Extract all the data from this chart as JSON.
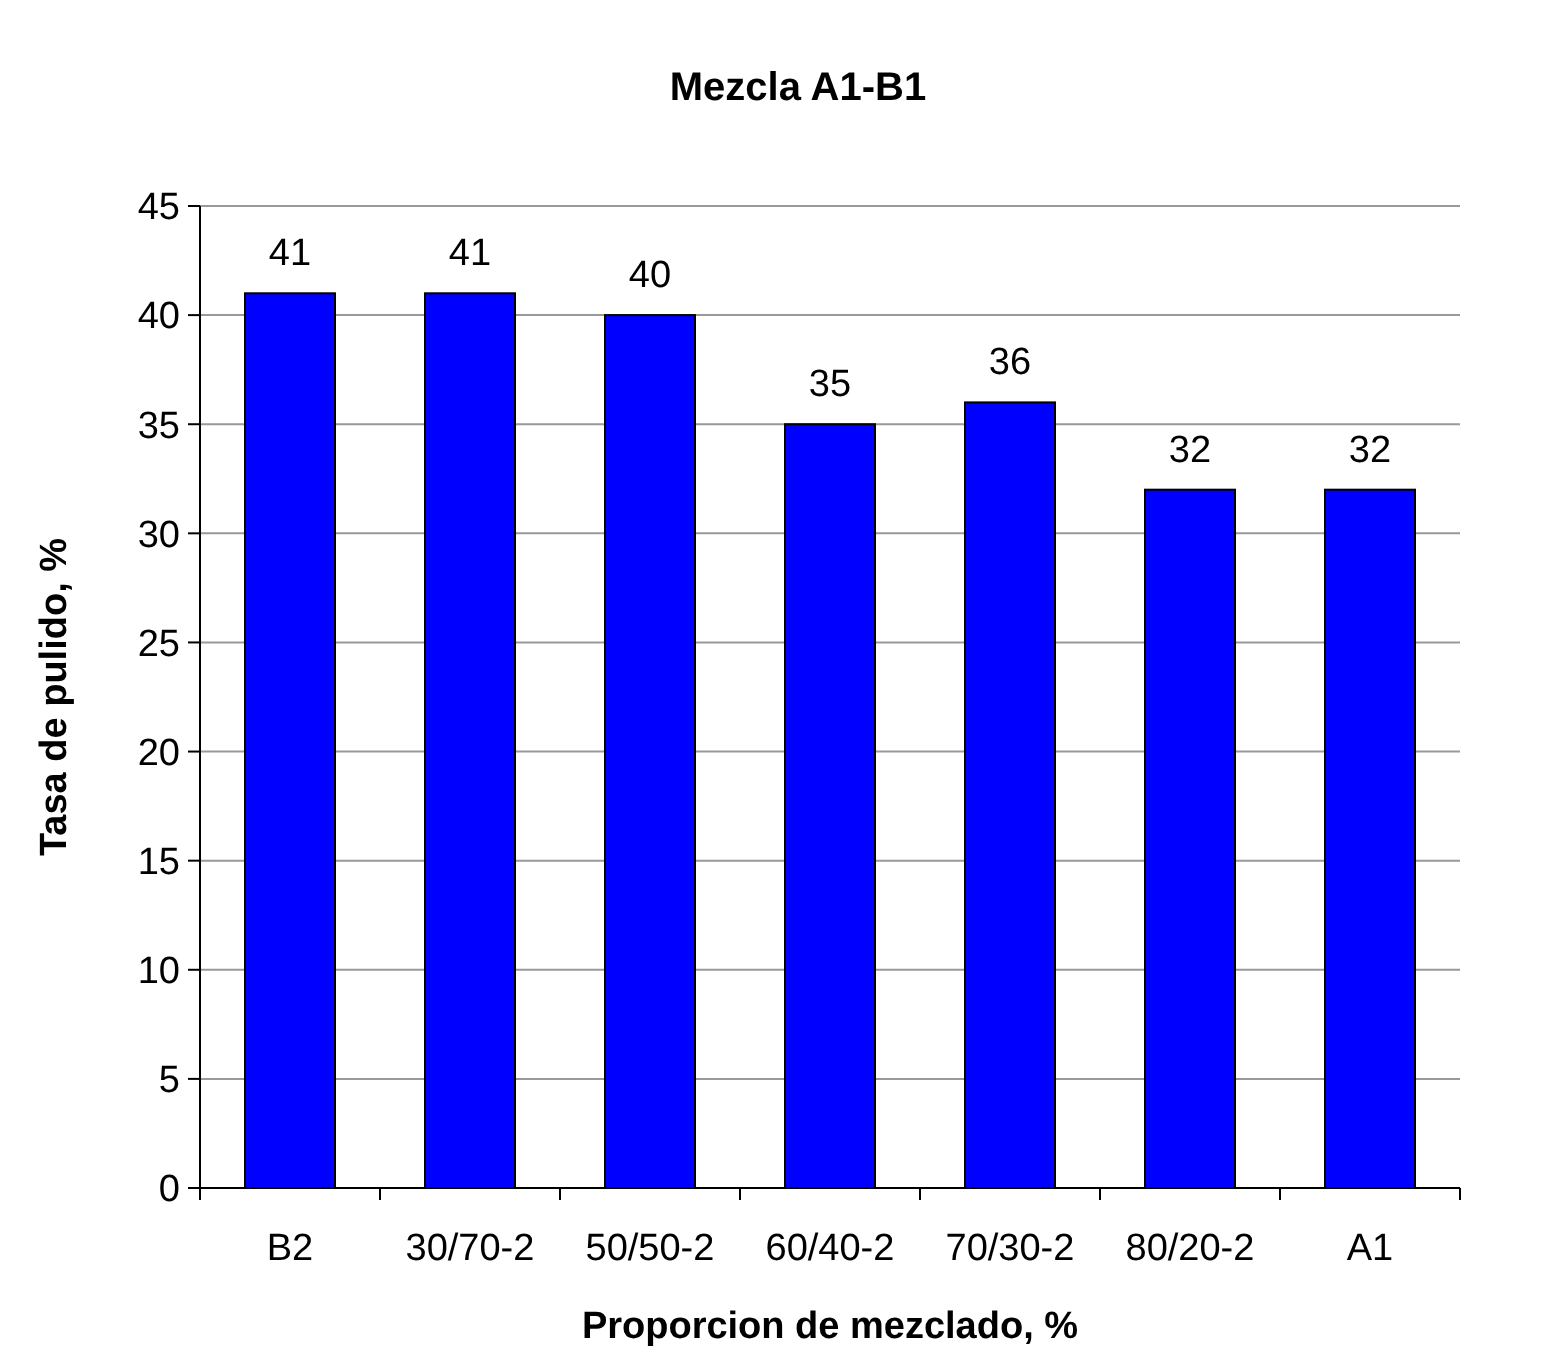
{
  "chart_data": {
    "type": "bar",
    "title": "Mezcla A1-B1",
    "xlabel": "Proporcion de mezclado, %",
    "ylabel": "Tasa de pulido, %",
    "categories": [
      "B2",
      "30/70-2",
      "50/50-2",
      "60/40-2",
      "70/30-2",
      "80/20-2",
      "A1"
    ],
    "values": [
      41,
      41,
      40,
      35,
      36,
      32,
      32
    ],
    "color": "#0000ff",
    "ylim": [
      0,
      45
    ],
    "yticks": [
      0,
      5,
      10,
      15,
      20,
      25,
      30,
      35,
      40,
      45
    ],
    "grid": "y",
    "data_labels": true
  }
}
